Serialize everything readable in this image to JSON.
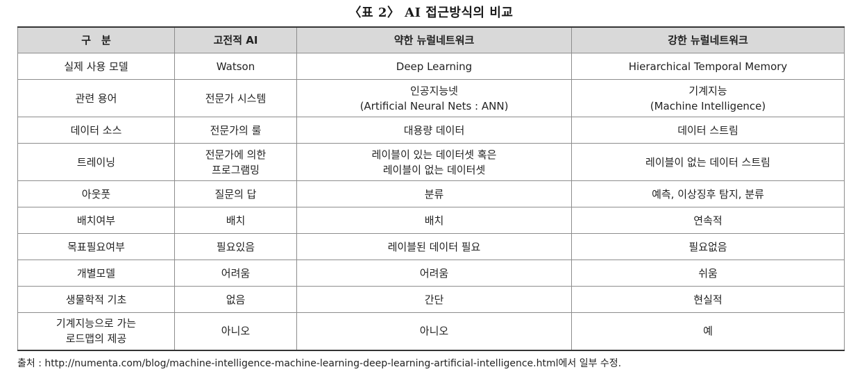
{
  "caption": "〈표 2〉 AI 접근방식의 비교",
  "table": {
    "headers": [
      "구　분",
      "고전적 AI",
      "약한 뉴럴네트워크",
      "강한 뉴럴네트워크"
    ],
    "rows": [
      {
        "cells": [
          [
            "실제 사용 모델"
          ],
          [
            "Watson"
          ],
          [
            "Deep Learning"
          ],
          [
            "Hierarchical Temporal Memory"
          ]
        ]
      },
      {
        "cells": [
          [
            "관련 용어"
          ],
          [
            "전문가 시스템"
          ],
          [
            "인공지능넷",
            "(Artificial Neural Nets : ANN)"
          ],
          [
            "기계지능",
            "(Machine Intelligence)"
          ]
        ]
      },
      {
        "cells": [
          [
            "데이터 소스"
          ],
          [
            "전문가의 룰"
          ],
          [
            "대용량 데이터"
          ],
          [
            "데이터 스트림"
          ]
        ]
      },
      {
        "cells": [
          [
            "트레이닝"
          ],
          [
            "전문가에 의한",
            "프로그램밍"
          ],
          [
            "레이블이 있는 데이터셋 혹은",
            "레이블이 없는 데이터셋"
          ],
          [
            "레이블이 없는 데이터 스트림"
          ]
        ]
      },
      {
        "cells": [
          [
            "아웃풋"
          ],
          [
            "질문의 답"
          ],
          [
            "분류"
          ],
          [
            "예측, 이상징후 탐지, 분류"
          ]
        ]
      },
      {
        "cells": [
          [
            "배치여부"
          ],
          [
            "배치"
          ],
          [
            "배치"
          ],
          [
            "연속적"
          ]
        ]
      },
      {
        "cells": [
          [
            "목표필요여부"
          ],
          [
            "필요있음"
          ],
          [
            "레이블된 데이터 필요"
          ],
          [
            "필요없음"
          ]
        ]
      },
      {
        "cells": [
          [
            "개별모델"
          ],
          [
            "어려움"
          ],
          [
            "어려움"
          ],
          [
            "쉬움"
          ]
        ]
      },
      {
        "cells": [
          [
            "생물학적 기초"
          ],
          [
            "없음"
          ],
          [
            "간단"
          ],
          [
            "현실적"
          ]
        ]
      },
      {
        "cells": [
          [
            "기계지능으로 가는",
            "로드맵의 제공"
          ],
          [
            "아니오"
          ],
          [
            "아니오"
          ],
          [
            "예"
          ]
        ]
      }
    ]
  },
  "source": "출처 : http://numenta.com/blog/machine-intelligence-machine-learning-deep-learning-artificial-intelligence.html에서 일부 수정."
}
